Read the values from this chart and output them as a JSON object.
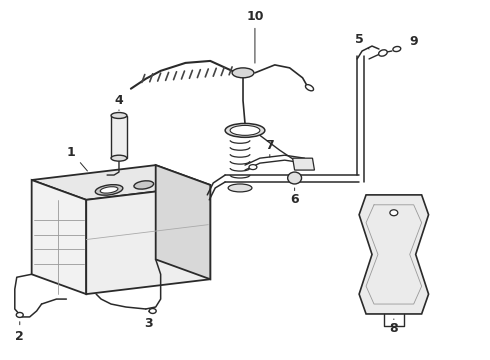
{
  "bg_color": "#ffffff",
  "line_color": "#2a2a2a",
  "figsize": [
    4.9,
    3.6
  ],
  "dpi": 100,
  "xlim": [
    0,
    490
  ],
  "ylim": [
    0,
    360
  ]
}
